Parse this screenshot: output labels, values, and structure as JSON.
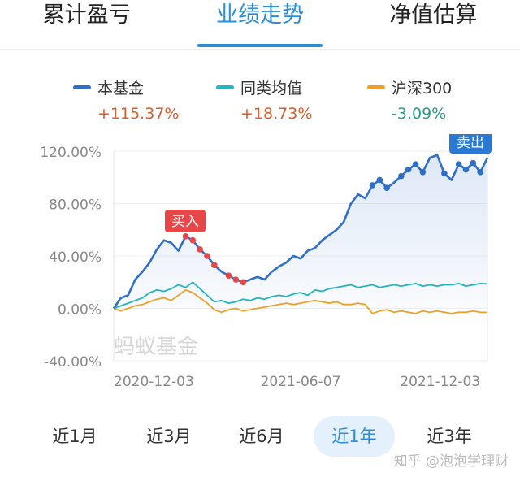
{
  "tabs": [
    "累计盈亏",
    "业绩走势",
    "净值估算"
  ],
  "active_tab": 1,
  "legend": [
    {
      "name": "本基金",
      "color": "#2f6fc6",
      "change": "+115.37%",
      "change_color": "#d4602f"
    },
    {
      "name": "同类均值",
      "color": "#23b4bd",
      "change": "+18.73%",
      "change_color": "#d4602f"
    },
    {
      "name": "沪深300",
      "color": "#eba126",
      "change": "-3.09%",
      "change_color": "#2a9a8a"
    }
  ],
  "ranges": [
    "近1月",
    "近3月",
    "近6月",
    "近1年",
    "近3年"
  ],
  "active_range": 3,
  "watermark_chart": "蚂蚁基金",
  "watermark_credit": "知乎 @泡泡学理财",
  "buy_label": "买入",
  "sell_label": "卖出",
  "chart_data": {
    "type": "line",
    "ylim": [
      -40,
      120
    ],
    "y_ticks": [
      "120.00%",
      "80.00%",
      "40.00%",
      "0.00%",
      "-40.00%"
    ],
    "y_tick_values": [
      120,
      80,
      40,
      0,
      -40
    ],
    "x_ticks": [
      "2020-12-03",
      "2021-06-07",
      "2021-12-03"
    ],
    "x_tick_positions": [
      0,
      26,
      51
    ],
    "x_count": 53,
    "series": [
      {
        "name": "本基金",
        "color": "#2f6fc6",
        "values": [
          0,
          8,
          10,
          22,
          28,
          35,
          45,
          52,
          50,
          44,
          55,
          52,
          45,
          40,
          33,
          28,
          25,
          22,
          20,
          22,
          24,
          22,
          28,
          32,
          35,
          40,
          38,
          44,
          46,
          52,
          56,
          60,
          66,
          80,
          87,
          84,
          94,
          98,
          92,
          96,
          101,
          106,
          110,
          104,
          115,
          117,
          103,
          98,
          110,
          106,
          111,
          104,
          115
        ]
      },
      {
        "name": "同类均值",
        "color": "#23b4bd",
        "values": [
          0,
          2,
          4,
          6,
          8,
          12,
          14,
          13,
          15,
          18,
          16,
          20,
          15,
          10,
          5,
          6,
          4,
          5,
          7,
          6,
          8,
          7,
          9,
          10,
          9,
          11,
          12,
          10,
          14,
          13,
          15,
          16,
          17,
          18,
          16,
          17,
          18,
          16,
          17,
          18,
          17,
          18,
          19,
          17,
          18,
          17,
          18,
          18,
          19,
          17,
          18,
          19,
          18.7
        ]
      },
      {
        "name": "沪深300",
        "color": "#eba126",
        "values": [
          0,
          -2,
          0,
          2,
          3,
          5,
          7,
          8,
          6,
          10,
          14,
          12,
          8,
          4,
          -1,
          -3,
          -1,
          0,
          -2,
          -1,
          0,
          1,
          2,
          3,
          4,
          3,
          4,
          5,
          6,
          5,
          4,
          5,
          3,
          3,
          4,
          3,
          -4,
          -2,
          -1,
          -3,
          -2,
          -3,
          -4,
          -2,
          -3,
          -2,
          -3,
          -4,
          -3,
          -3,
          -2,
          -3,
          -3.09
        ]
      }
    ],
    "buy_points": [
      10,
      11,
      12,
      13,
      14,
      16,
      17,
      18
    ],
    "sell_points": [
      36,
      37,
      38,
      40,
      41,
      42,
      43,
      46,
      48,
      49,
      50,
      51
    ]
  }
}
